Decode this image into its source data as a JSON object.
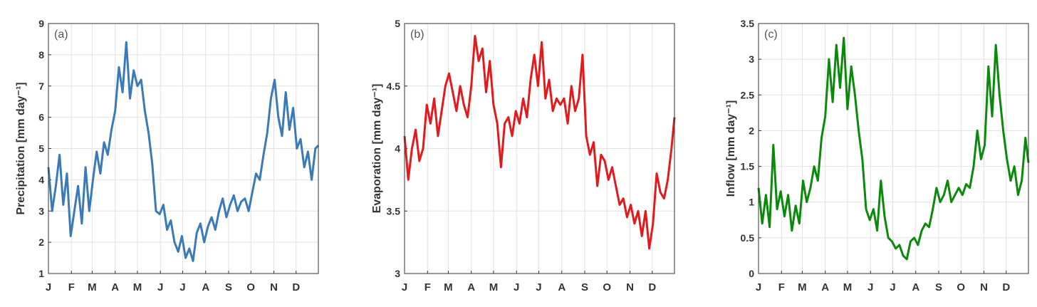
{
  "chart_data": [
    {
      "type": "line",
      "annotation": "(a)",
      "ylabel": "Precipitation  [mm day⁻¹]",
      "color": "#3a7ab8",
      "grid": true,
      "xlim": [
        1,
        365
      ],
      "xticks": [
        {
          "value": 1,
          "label": "J"
        },
        {
          "value": 32,
          "label": "F"
        },
        {
          "value": 60,
          "label": "M"
        },
        {
          "value": 91,
          "label": "A"
        },
        {
          "value": 121,
          "label": "M"
        },
        {
          "value": 152,
          "label": "J"
        },
        {
          "value": 182,
          "label": "J"
        },
        {
          "value": 213,
          "label": "A"
        },
        {
          "value": 244,
          "label": "S"
        },
        {
          "value": 274,
          "label": "O"
        },
        {
          "value": 305,
          "label": "N"
        },
        {
          "value": 335,
          "label": "D"
        }
      ],
      "ylim": [
        1,
        9
      ],
      "yticks": [
        1,
        2,
        3,
        4,
        5,
        6,
        7,
        8,
        9
      ],
      "x": [
        1,
        6,
        11,
        16,
        21,
        26,
        31,
        36,
        41,
        46,
        51,
        56,
        61,
        66,
        71,
        76,
        81,
        86,
        91,
        96,
        101,
        106,
        111,
        116,
        121,
        126,
        131,
        136,
        141,
        146,
        151,
        156,
        161,
        166,
        171,
        176,
        181,
        186,
        191,
        196,
        201,
        206,
        211,
        216,
        221,
        226,
        231,
        236,
        241,
        246,
        251,
        256,
        261,
        266,
        271,
        276,
        281,
        286,
        291,
        296,
        301,
        306,
        311,
        316,
        321,
        326,
        331,
        336,
        341,
        346,
        351,
        356,
        361,
        365
      ],
      "values": [
        4.4,
        3.0,
        3.8,
        4.8,
        3.2,
        4.2,
        2.2,
        3.0,
        3.8,
        2.6,
        4.4,
        3.0,
        4.0,
        4.9,
        4.2,
        5.2,
        4.8,
        5.6,
        6.2,
        7.6,
        6.8,
        8.4,
        6.6,
        7.5,
        7.0,
        7.2,
        6.2,
        5.5,
        4.5,
        3.0,
        2.9,
        3.2,
        2.4,
        2.7,
        2.0,
        1.7,
        2.2,
        1.5,
        1.8,
        1.4,
        2.3,
        2.6,
        2.0,
        2.5,
        2.8,
        2.4,
        3.0,
        3.4,
        2.8,
        3.2,
        3.5,
        3.0,
        3.3,
        3.4,
        3.0,
        3.6,
        4.2,
        4.0,
        4.8,
        5.5,
        6.6,
        7.2,
        6.0,
        5.4,
        6.8,
        5.6,
        6.3,
        5.0,
        5.3,
        4.4,
        4.9,
        4.0,
        5.0,
        5.1
      ]
    },
    {
      "type": "line",
      "annotation": "(b)",
      "ylabel": "Evaporation  [mm day⁻¹]",
      "color": "#e3191c",
      "grid": true,
      "xlim": [
        1,
        365
      ],
      "xticks": [
        {
          "value": 1,
          "label": "J"
        },
        {
          "value": 32,
          "label": "F"
        },
        {
          "value": 60,
          "label": "M"
        },
        {
          "value": 91,
          "label": "A"
        },
        {
          "value": 121,
          "label": "M"
        },
        {
          "value": 152,
          "label": "J"
        },
        {
          "value": 182,
          "label": "J"
        },
        {
          "value": 213,
          "label": "A"
        },
        {
          "value": 244,
          "label": "S"
        },
        {
          "value": 274,
          "label": "O"
        },
        {
          "value": 305,
          "label": "N"
        },
        {
          "value": 335,
          "label": "D"
        }
      ],
      "ylim": [
        3,
        5
      ],
      "yticks": [
        3,
        3.5,
        4,
        4.5,
        5
      ],
      "x": [
        1,
        6,
        11,
        16,
        21,
        26,
        31,
        36,
        41,
        46,
        51,
        56,
        61,
        66,
        71,
        76,
        81,
        86,
        91,
        96,
        101,
        106,
        111,
        116,
        121,
        126,
        131,
        136,
        141,
        146,
        151,
        156,
        161,
        166,
        171,
        176,
        181,
        186,
        191,
        196,
        201,
        206,
        211,
        216,
        221,
        226,
        231,
        236,
        241,
        246,
        251,
        256,
        261,
        266,
        271,
        276,
        281,
        286,
        291,
        296,
        301,
        306,
        311,
        316,
        321,
        326,
        331,
        336,
        341,
        346,
        351,
        356,
        361,
        365
      ],
      "values": [
        4.1,
        3.75,
        4.0,
        4.15,
        3.9,
        4.0,
        4.35,
        4.2,
        4.4,
        4.1,
        4.3,
        4.5,
        4.6,
        4.45,
        4.3,
        4.5,
        4.35,
        4.25,
        4.5,
        4.9,
        4.7,
        4.8,
        4.45,
        4.7,
        4.35,
        4.2,
        3.85,
        4.2,
        4.25,
        4.1,
        4.3,
        4.2,
        4.4,
        4.25,
        4.55,
        4.75,
        4.5,
        4.85,
        4.4,
        4.55,
        4.3,
        4.4,
        4.35,
        4.4,
        4.2,
        4.5,
        4.3,
        4.4,
        4.75,
        4.1,
        3.95,
        4.05,
        3.7,
        3.95,
        3.9,
        3.75,
        3.85,
        3.7,
        3.55,
        3.6,
        3.45,
        3.55,
        3.4,
        3.5,
        3.3,
        3.5,
        3.2,
        3.4,
        3.8,
        3.65,
        3.6,
        3.75,
        4.0,
        4.25
      ]
    },
    {
      "type": "line",
      "annotation": "(c)",
      "ylabel": "Inflow  [mm day⁻¹]",
      "color": "#0a8a0a",
      "grid": true,
      "xlim": [
        1,
        365
      ],
      "xticks": [
        {
          "value": 1,
          "label": "J"
        },
        {
          "value": 32,
          "label": "F"
        },
        {
          "value": 60,
          "label": "M"
        },
        {
          "value": 91,
          "label": "A"
        },
        {
          "value": 121,
          "label": "M"
        },
        {
          "value": 152,
          "label": "J"
        },
        {
          "value": 182,
          "label": "J"
        },
        {
          "value": 213,
          "label": "A"
        },
        {
          "value": 244,
          "label": "S"
        },
        {
          "value": 274,
          "label": "O"
        },
        {
          "value": 305,
          "label": "N"
        },
        {
          "value": 335,
          "label": "D"
        }
      ],
      "ylim": [
        0,
        3.5
      ],
      "yticks": [
        0,
        0.5,
        1,
        1.5,
        2,
        2.5,
        3,
        3.5
      ],
      "x": [
        1,
        6,
        11,
        16,
        21,
        26,
        31,
        36,
        41,
        46,
        51,
        56,
        61,
        66,
        71,
        76,
        81,
        86,
        91,
        96,
        101,
        106,
        111,
        116,
        121,
        126,
        131,
        136,
        141,
        146,
        151,
        156,
        161,
        166,
        171,
        176,
        181,
        186,
        191,
        196,
        201,
        206,
        211,
        216,
        221,
        226,
        231,
        236,
        241,
        246,
        251,
        256,
        261,
        266,
        271,
        276,
        281,
        286,
        291,
        296,
        301,
        306,
        311,
        316,
        321,
        326,
        331,
        336,
        341,
        346,
        351,
        356,
        361,
        365
      ],
      "values": [
        1.2,
        0.7,
        1.1,
        0.65,
        1.8,
        0.9,
        1.15,
        0.8,
        1.1,
        0.6,
        0.95,
        0.7,
        1.3,
        1.0,
        1.2,
        1.5,
        1.3,
        1.9,
        2.2,
        3.0,
        2.4,
        3.2,
        2.6,
        3.3,
        2.3,
        2.9,
        2.5,
        2.0,
        1.6,
        0.9,
        0.75,
        0.9,
        0.6,
        1.3,
        0.8,
        0.5,
        0.45,
        0.35,
        0.4,
        0.25,
        0.2,
        0.45,
        0.5,
        0.4,
        0.6,
        0.7,
        0.65,
        0.9,
        1.2,
        1.0,
        1.1,
        1.3,
        1.0,
        1.1,
        1.2,
        1.1,
        1.25,
        1.2,
        1.5,
        2.0,
        1.6,
        1.8,
        2.9,
        2.2,
        3.2,
        2.5,
        2.0,
        1.6,
        1.3,
        1.5,
        1.1,
        1.3,
        1.9,
        1.55
      ]
    }
  ]
}
